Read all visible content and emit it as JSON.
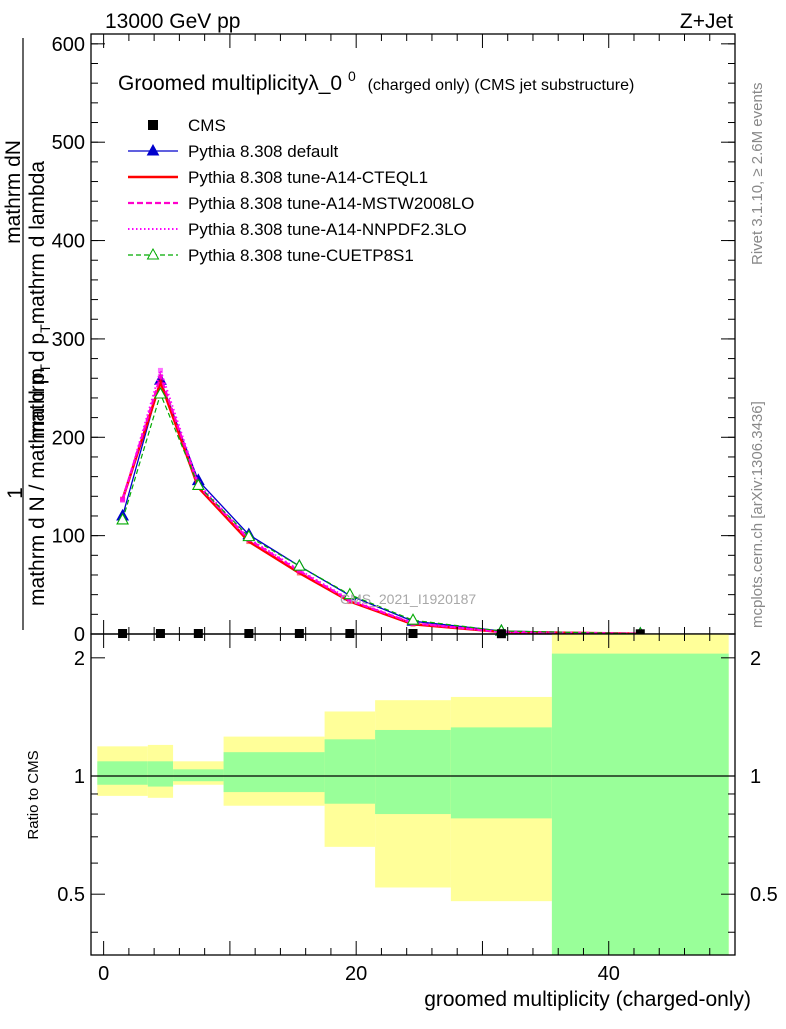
{
  "header": {
    "energy_label": "13000 GeV pp",
    "process_label": "Z+Jet"
  },
  "side_labels": {
    "rivet": "Rivet 3.1.10, ≥ 2.6M events",
    "mcplots": "mcplots.cern.ch [arXiv:1306.3436]"
  },
  "watermark": "CMS_2021_I1920187",
  "chart_data": [
    {
      "type": "line",
      "title_main": "Groomed multiplicityλ_0",
      "title_sup": "0",
      "title_suffix": "(charged only) (CMS jet substructure)",
      "ylabel_top": "1",
      "ylabel_frac_num": "mathrm dN",
      "ylabel_frac_mid": "mathrm d p",
      "ylabel_frac_mid_sub": "T",
      "ylabel_frac_mid_tail": "mathrm d lambda",
      "ylabel_frac_den": "mathrm d N / mathrm d p",
      "ylabel_frac_den_sub": "T",
      "ylim": [
        0,
        610
      ],
      "xlim": [
        -1,
        50
      ],
      "yticks": [
        0,
        100,
        200,
        300,
        400,
        500,
        600
      ],
      "ytick_labels": [
        "0",
        "100",
        "200",
        "300",
        "400",
        "500",
        "600"
      ],
      "bins": [
        [
          0,
          3
        ],
        [
          3,
          6
        ],
        [
          6,
          9
        ],
        [
          9,
          14
        ],
        [
          14,
          17
        ],
        [
          17,
          22
        ],
        [
          22,
          27
        ],
        [
          27,
          36
        ],
        [
          36,
          49
        ]
      ],
      "x": [
        1.5,
        4.5,
        7.5,
        11.5,
        15.5,
        19.5,
        24.5,
        31.5,
        42.5
      ],
      "series": [
        {
          "name": "CMS",
          "style": "data",
          "color": "#000000",
          "values": [
            0.5,
            0.5,
            0.5,
            0.5,
            0.5,
            0.5,
            0.5,
            0.3,
            0.2
          ]
        },
        {
          "name": "Pythia 8.308 default",
          "style": "solid-triangle",
          "color": "#0000cc",
          "values": [
            120,
            258,
            156,
            101,
            69,
            39,
            13,
            3,
            0.3
          ]
        },
        {
          "name": "Pythia 8.308 tune-A14-CTEQL1",
          "style": "solid-thick",
          "color": "#ff0000",
          "values": [
            137,
            256,
            149,
            94,
            62,
            33,
            10,
            2,
            0.3
          ]
        },
        {
          "name": "Pythia 8.308 tune-A14-MSTW2008LO",
          "style": "dashed",
          "color": "#ff00cc",
          "values": [
            137,
            262,
            151,
            96,
            64,
            34,
            11,
            2,
            0.3
          ]
        },
        {
          "name": "Pythia 8.308 tune-A14-NNPDF2.3LO",
          "style": "dotted",
          "color": "#ff00ff",
          "values": [
            136,
            268,
            153,
            97,
            65,
            35,
            11,
            2,
            0.3
          ]
        },
        {
          "name": "Pythia 8.308 tune-CUETP8S1",
          "style": "dashed-open-triangle",
          "color": "#00aa00",
          "values": [
            116,
            244,
            151,
            99,
            69,
            40,
            14,
            3,
            0.3
          ]
        }
      ]
    },
    {
      "type": "area",
      "ylabel": "Ratio to CMS",
      "xlabel": "groomed multiplicity (charged-only)",
      "ylim": [
        0.35,
        2.3
      ],
      "xlim": [
        -1,
        50
      ],
      "yticks": [
        0.5,
        1,
        2
      ],
      "ytick_labels": [
        "0.5",
        "1",
        "2"
      ],
      "xticks": [
        0,
        20,
        40
      ],
      "xtick_labels": [
        "0",
        "20",
        "40"
      ],
      "bins": [
        [
          -0.5,
          3.5
        ],
        [
          3.5,
          5.5
        ],
        [
          5.5,
          9.5
        ],
        [
          9.5,
          17.5
        ],
        [
          17.5,
          21.5
        ],
        [
          21.5,
          27.5
        ],
        [
          27.5,
          35.5
        ],
        [
          35.5,
          49.5
        ]
      ],
      "band_outer": [
        [
          0.89,
          1.19
        ],
        [
          0.88,
          1.2
        ],
        [
          0.95,
          1.09
        ],
        [
          0.84,
          1.26
        ],
        [
          0.66,
          1.46
        ],
        [
          0.52,
          1.56
        ],
        [
          0.48,
          1.59
        ],
        [
          0.35,
          2.3
        ]
      ],
      "band_inner": [
        [
          0.95,
          1.09
        ],
        [
          0.94,
          1.09
        ],
        [
          0.97,
          1.04
        ],
        [
          0.91,
          1.15
        ],
        [
          0.85,
          1.24
        ],
        [
          0.8,
          1.31
        ],
        [
          0.78,
          1.33
        ],
        [
          0.35,
          2.05
        ]
      ],
      "band_outer_color": "#ffff99",
      "band_inner_color": "#99ff99",
      "reference": 1
    }
  ]
}
